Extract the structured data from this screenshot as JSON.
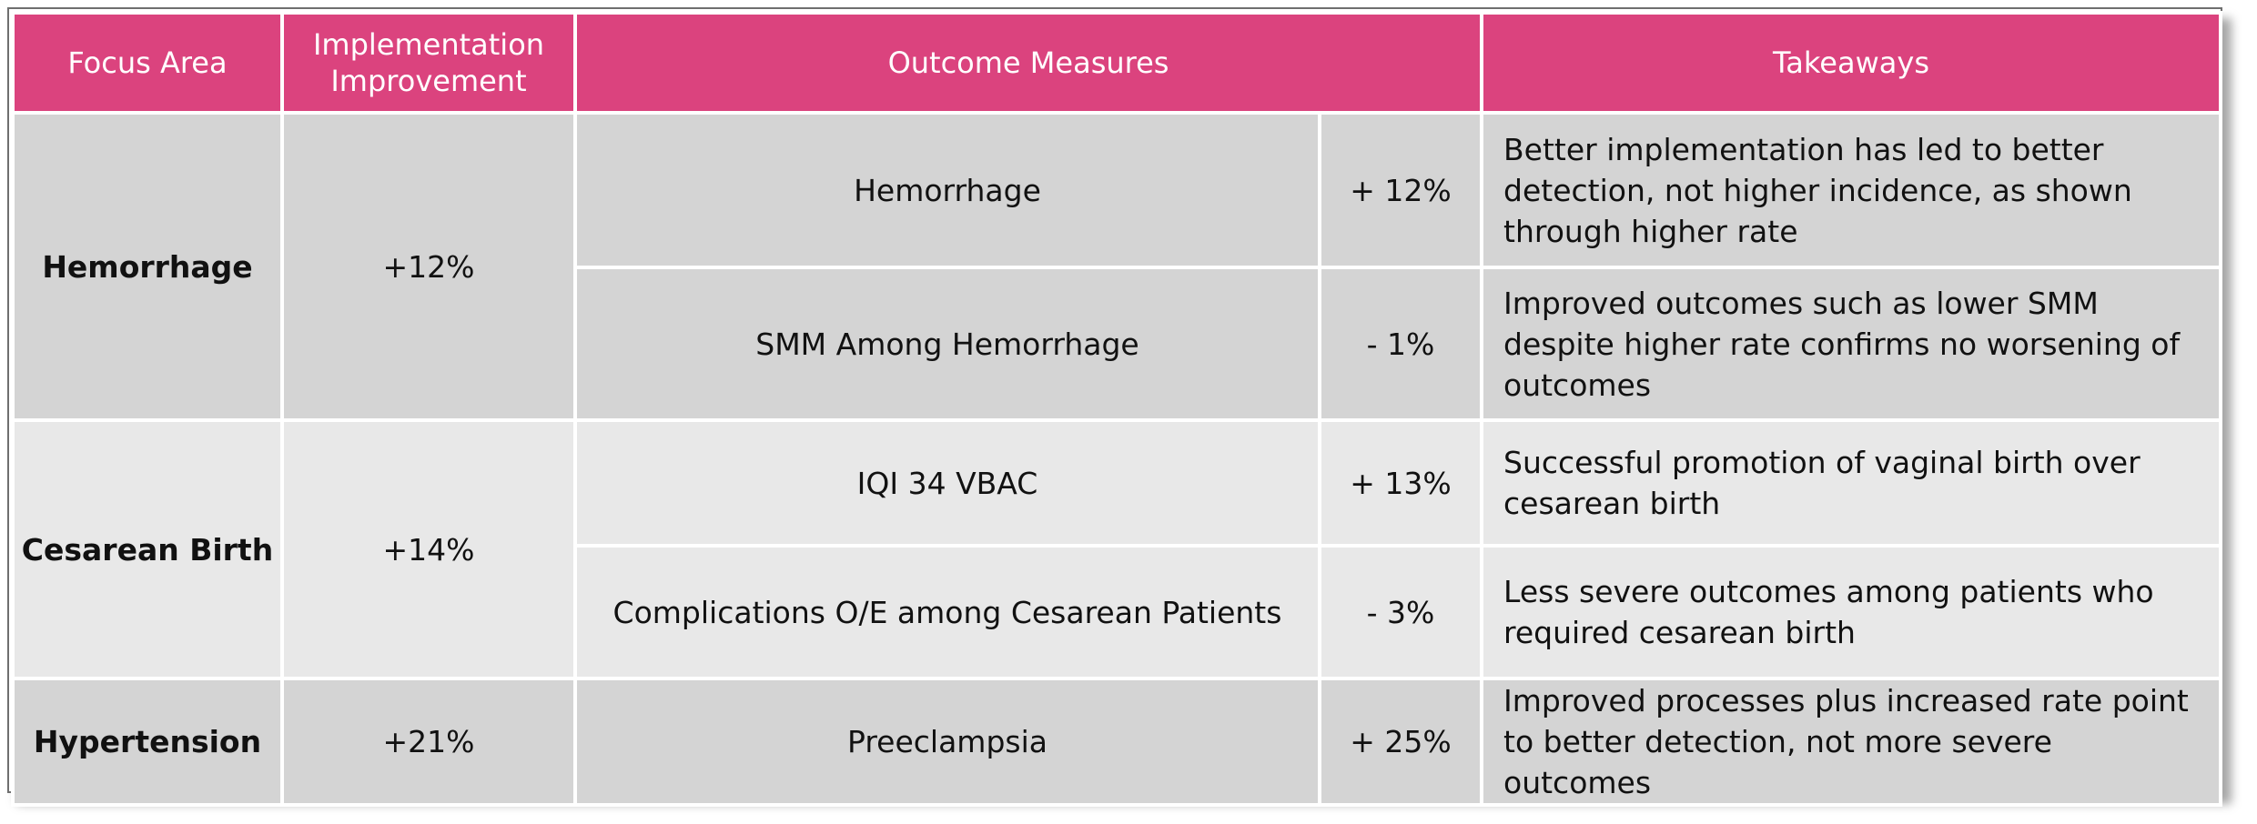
{
  "headers": {
    "focus_area": "Focus Area",
    "implementation_improvement": "Implementation Improvement",
    "outcome_measures": "Outcome Measures",
    "takeaways": "Takeaways"
  },
  "groups": [
    {
      "focus_area": "Hemorrhage",
      "implementation_improvement": "+12%",
      "outcomes": [
        {
          "measure": "Hemorrhage",
          "change": "+ 12%",
          "takeaway": "Better implementation has led to better detection, not higher incidence, as shown through higher rate"
        },
        {
          "measure": "SMM Among Hemorrhage",
          "change": "- 1%",
          "takeaway": "Improved outcomes such as lower SMM despite higher rate confirms no worsening of outcomes"
        }
      ]
    },
    {
      "focus_area": "Cesarean Birth",
      "implementation_improvement": "+14%",
      "outcomes": [
        {
          "measure": "IQI 34 VBAC",
          "change": "+ 13%",
          "takeaway": "Successful promotion of vaginal birth over cesarean birth"
        },
        {
          "measure": "Complications O/E among Cesarean Patients",
          "change": "- 3%",
          "takeaway": "Less severe outcomes among patients who required cesarean birth"
        }
      ]
    },
    {
      "focus_area": "Hypertension",
      "implementation_improvement": "+21%",
      "outcomes": [
        {
          "measure": "Preeclampsia",
          "change": "+ 25%",
          "takeaway": "Improved processes plus increased rate point to better detection, not more severe outcomes"
        }
      ]
    }
  ],
  "colors": {
    "header": "#db437e",
    "row_dark": "#d4d4d4",
    "row_light": "#e8e8e8"
  }
}
